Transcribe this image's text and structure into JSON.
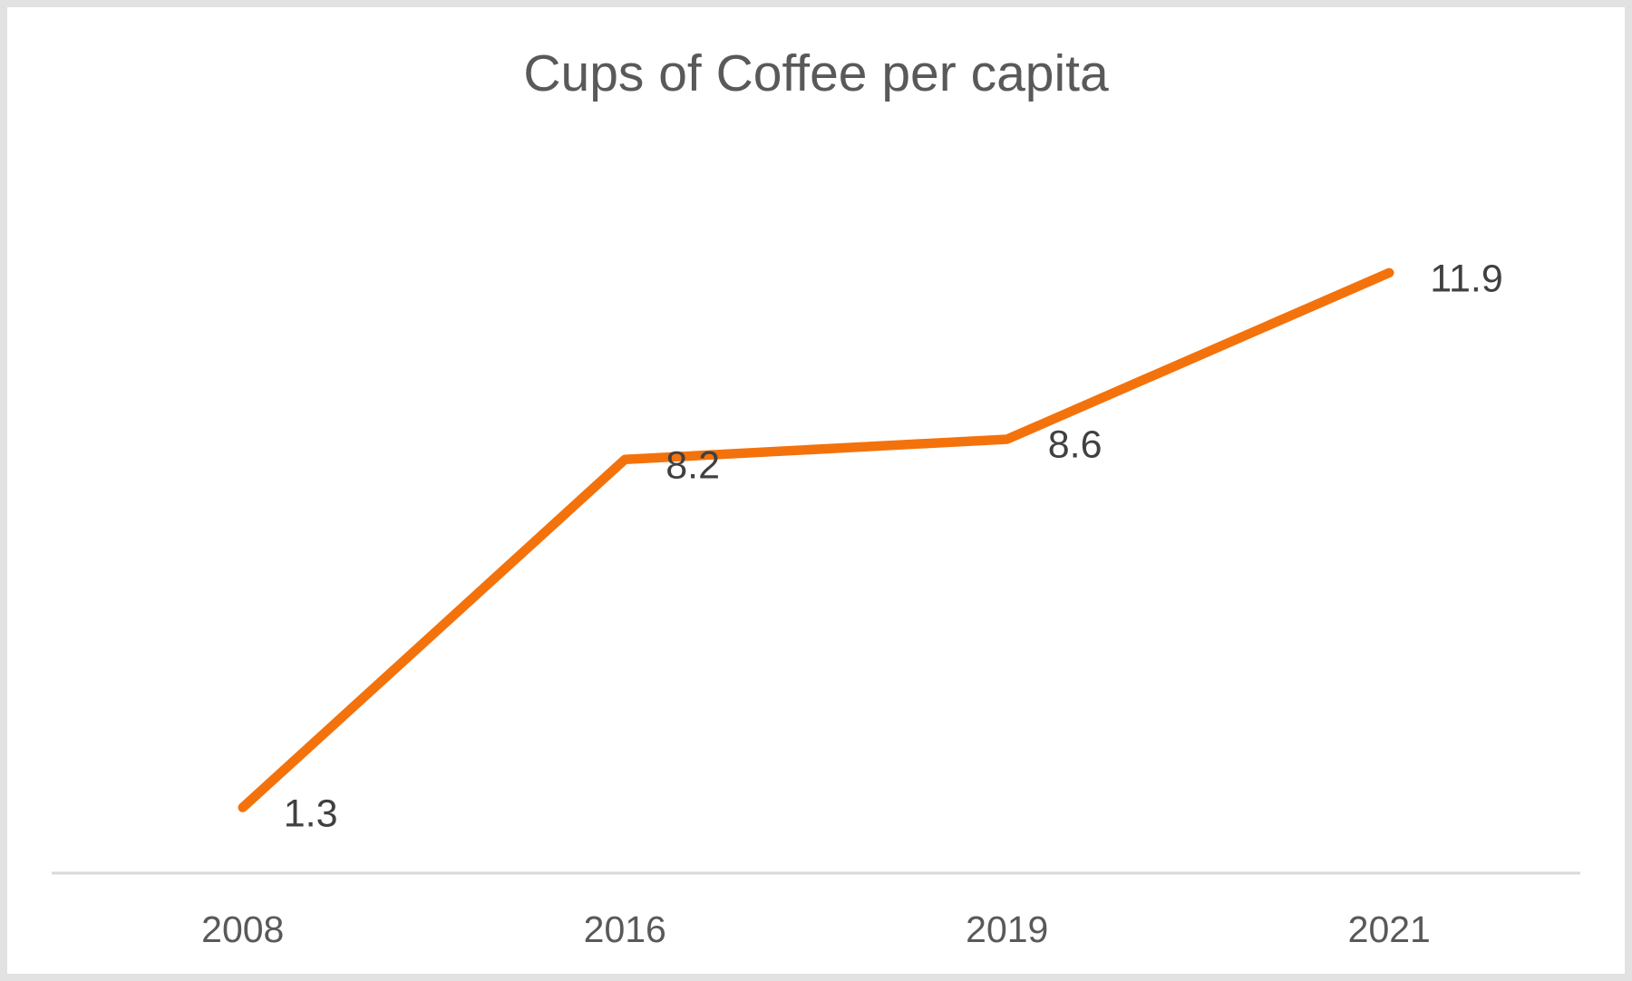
{
  "chart_data": {
    "type": "line",
    "title": "Cups of Coffee per capita",
    "categories": [
      "2008",
      "2016",
      "2019",
      "2021"
    ],
    "series": [
      {
        "name": "Cups of Coffee per capita",
        "values": [
          1.3,
          8.2,
          8.6,
          11.9
        ]
      }
    ],
    "data_labels": [
      "1.3",
      "8.2",
      "8.6",
      "11.9"
    ],
    "xlabel": "",
    "ylabel": "",
    "ylim": [
      0,
      14
    ],
    "grid": false,
    "legend": "none",
    "data_label_position": "right",
    "colors": {
      "line": "#f4720b",
      "title_text": "#595959",
      "data_label_text": "#404040",
      "tick_text": "#595959",
      "axis_line": "#d9d9d9",
      "frame_border": "#e2e2e2",
      "background": "#ffffff"
    }
  }
}
